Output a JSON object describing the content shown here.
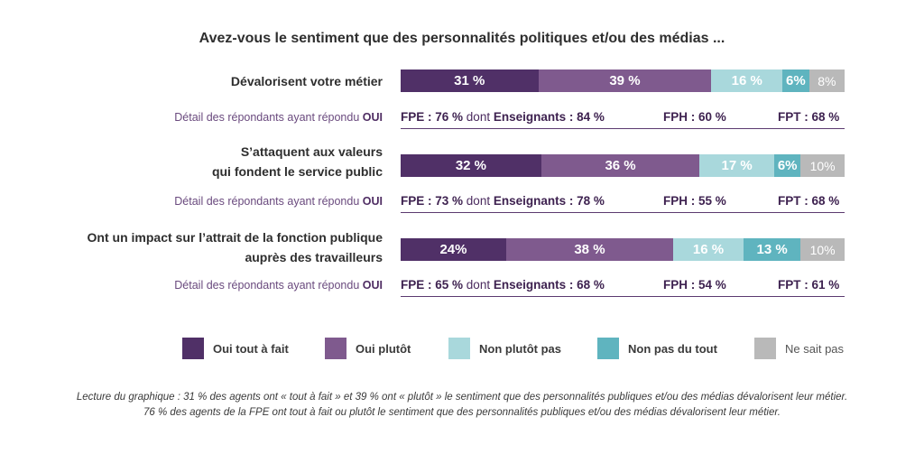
{
  "title": "Avez-vous le sentiment que des personnalités politiques et/ou des médias ...",
  "chart_data": {
    "type": "bar",
    "orientation": "horizontal",
    "stacked": true,
    "categories": [
      [
        "Dévalorisent votre métier"
      ],
      [
        "S’attaquent aux valeurs",
        "qui fondent le service public"
      ],
      [
        "Ont un impact sur l’attrait de la fonction publique",
        "auprès des travailleurs"
      ]
    ],
    "series": [
      {
        "name": "Oui tout à fait",
        "color": "#503067",
        "values": [
          31,
          32,
          24
        ],
        "labels": [
          "31 %",
          "32 %",
          "24%"
        ]
      },
      {
        "name": "Oui plutôt",
        "color": "#7f5a8e",
        "values": [
          39,
          36,
          38
        ],
        "labels": [
          "39 %",
          "36 %",
          "38 %"
        ]
      },
      {
        "name": "Non plutôt pas",
        "color": "#a9d8dc",
        "values": [
          16,
          17,
          16
        ],
        "labels": [
          "16 %",
          "17 %",
          "16 %"
        ]
      },
      {
        "name": "Non pas du tout",
        "color": "#5fb4bf",
        "values": [
          6,
          6,
          13
        ],
        "labels": [
          "6%",
          "6%",
          "13 %"
        ]
      },
      {
        "name": "Ne sait pas",
        "color": "#b9b9b9",
        "values": [
          8,
          10,
          10
        ],
        "labels": [
          "8%",
          "10%",
          "10%"
        ]
      }
    ],
    "xlim": [
      0,
      100
    ],
    "legend_position": "bottom"
  },
  "details": {
    "label_prefix": "Détail des répondants ayant répondu ",
    "label_bold": "OUI",
    "rows": [
      {
        "fpe": "FPE : 76 %",
        "dont": "dont",
        "ens": "Enseignants : 84 %",
        "fph": "FPH : 60 %",
        "fpt": "FPT : 68 %"
      },
      {
        "fpe": "FPE : 73 %",
        "dont": "dont",
        "ens": "Enseignants : 78 %",
        "fph": "FPH : 55 %",
        "fpt": "FPT : 68 %"
      },
      {
        "fpe": "FPE : 65 %",
        "dont": "dont",
        "ens": "Enseignants : 68 %",
        "fph": "FPH : 54 %",
        "fpt": "FPT : 61 %"
      }
    ]
  },
  "caption": [
    "Lecture du graphique : 31 % des agents ont « tout à fait » et 39 % ont « plutôt » le sentiment que des personnalités publiques et/ou des médias dévalorisent leur métier.",
    "76 % des agents de la FPE ont tout à fait ou plutôt le sentiment que des personnalités publiques et/ou des médias dévalorisent leur métier."
  ]
}
